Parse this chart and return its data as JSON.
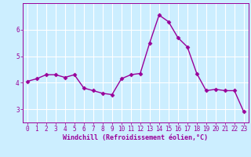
{
  "x": [
    0,
    1,
    2,
    3,
    4,
    5,
    6,
    7,
    8,
    9,
    10,
    11,
    12,
    13,
    14,
    15,
    16,
    17,
    18,
    19,
    20,
    21,
    22,
    23
  ],
  "y": [
    4.05,
    4.15,
    4.3,
    4.3,
    4.2,
    4.3,
    3.8,
    3.7,
    3.6,
    3.55,
    4.15,
    4.3,
    4.35,
    5.5,
    6.55,
    6.3,
    5.7,
    5.35,
    4.35,
    3.7,
    3.75,
    3.7,
    3.7,
    2.9
  ],
  "line_color": "#990099",
  "marker": "D",
  "markersize": 2.5,
  "linewidth": 1.0,
  "bg_color": "#cceeff",
  "grid_color": "#ffffff",
  "xlabel": "Windchill (Refroidissement éolien,°C)",
  "xlabel_color": "#990099",
  "tick_color": "#990099",
  "spine_color": "#990099",
  "xlim": [
    -0.5,
    23.5
  ],
  "ylim": [
    2.5,
    7.0
  ],
  "yticks": [
    3,
    4,
    5,
    6
  ],
  "xticks": [
    0,
    1,
    2,
    3,
    4,
    5,
    6,
    7,
    8,
    9,
    10,
    11,
    12,
    13,
    14,
    15,
    16,
    17,
    18,
    19,
    20,
    21,
    22,
    23
  ],
  "tick_fontsize": 5.5,
  "xlabel_fontsize": 6.0,
  "title": ""
}
